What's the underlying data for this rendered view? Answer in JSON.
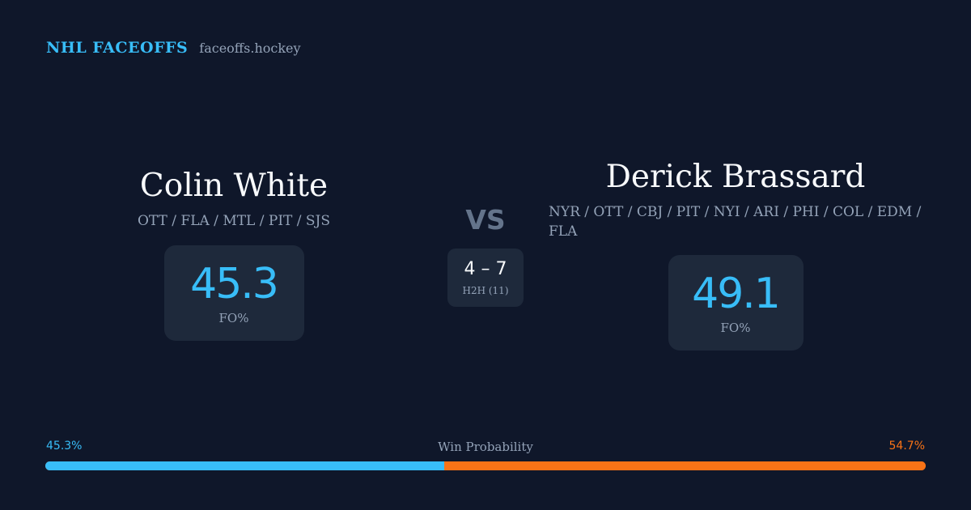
{
  "brand": {
    "name": "NHL FACEOFFS",
    "domain": "faceoffs.hockey"
  },
  "colors": {
    "primary": "#38bdf8",
    "secondary": "#f97316",
    "background": "#0f172a",
    "card": "#1e293b"
  },
  "player_left": {
    "name": "Colin White",
    "teams": "OTT / FLA / MTL / PIT / SJS",
    "fo_value": "45.3",
    "fo_label": "FO%"
  },
  "player_right": {
    "name": "Derick Brassard",
    "teams": "NYR / OTT / CBJ / PIT / NYI / ARI / PHI / COL / EDM / FLA",
    "fo_value": "49.1",
    "fo_label": "FO%"
  },
  "matchup": {
    "vs": "VS",
    "h2h_score": "4 – 7",
    "h2h_label": "H2H (11)"
  },
  "win_probability": {
    "title": "Win Probability",
    "left_label": "45.3%",
    "right_label": "54.7%",
    "left_percent": 45.3,
    "right_percent": 54.7
  }
}
